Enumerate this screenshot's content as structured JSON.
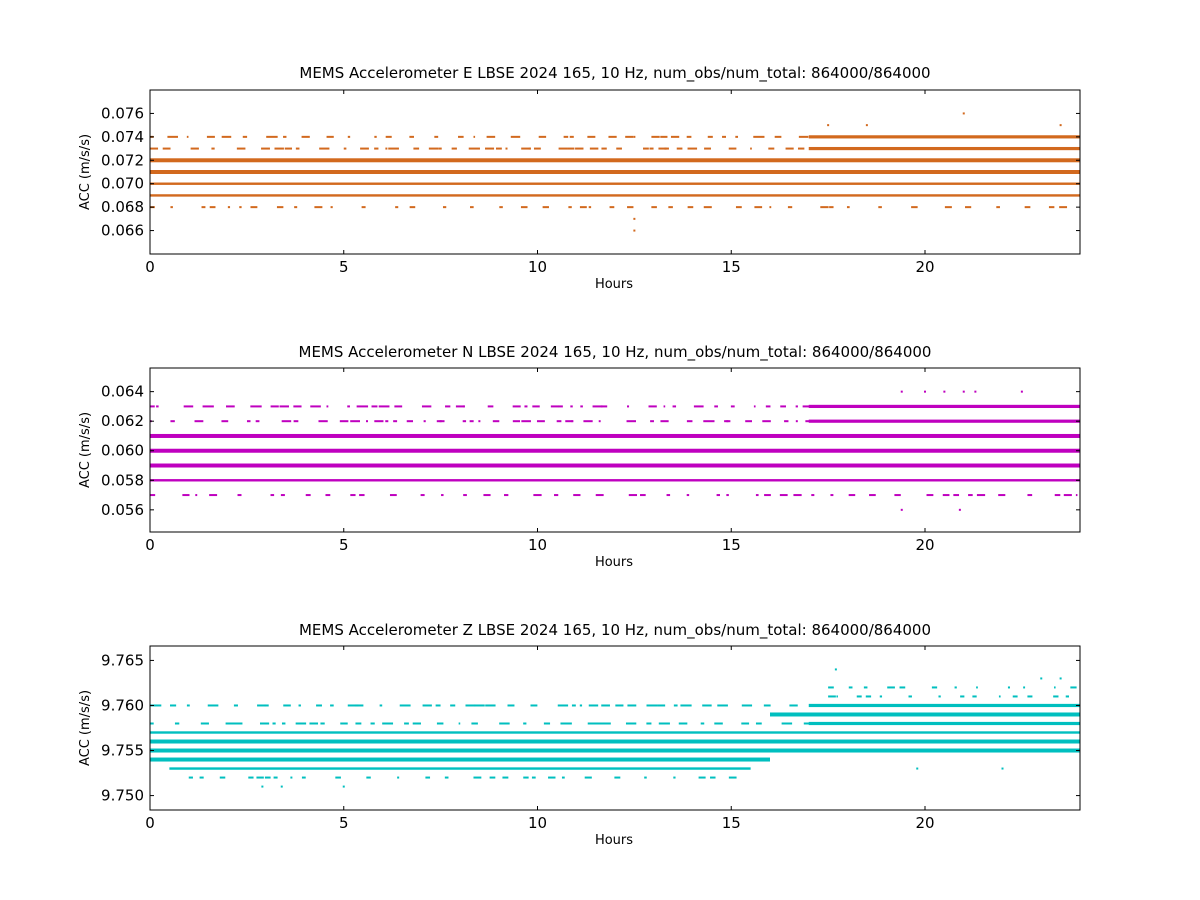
{
  "chart_data": [
    {
      "type": "scatter",
      "title": "MEMS Accelerometer E LBSE 2024 165, 10 Hz, num_obs/num_total: 864000/864000",
      "xlabel": "Hours",
      "ylabel": "ACC (m/s/s)",
      "xlim": [
        0,
        24
      ],
      "ylim": [
        0.064,
        0.078
      ],
      "xticks": [
        0,
        5,
        10,
        15,
        20
      ],
      "xtick_labels": [
        "0",
        "5",
        "10",
        "15",
        "20"
      ],
      "yticks": [
        0.066,
        0.068,
        0.07,
        0.072,
        0.074,
        0.076
      ],
      "ytick_labels": [
        "0.066",
        "0.068",
        "0.070",
        "0.072",
        "0.074",
        "0.076"
      ],
      "color": "#d2691e",
      "series": [
        {
          "y": 0.072,
          "x_start": 0,
          "x_end": 24,
          "density": "dense"
        },
        {
          "y": 0.071,
          "x_start": 0,
          "x_end": 24,
          "density": "dense"
        },
        {
          "y": 0.07,
          "x_start": 0,
          "x_end": 24,
          "density": "medium"
        },
        {
          "y": 0.069,
          "x_start": 0,
          "x_end": 24,
          "density": "medium"
        },
        {
          "y": 0.073,
          "x_start": 0,
          "x_end": 24,
          "density": "sparse-early-dense-late"
        },
        {
          "y": 0.074,
          "x_start": 0,
          "x_end": 24,
          "density": "sparse-early-dense-late"
        },
        {
          "y": 0.068,
          "x_start": 0,
          "x_end": 24,
          "density": "sparse"
        }
      ],
      "outliers": [
        [
          12.5,
          0.066
        ],
        [
          12.5,
          0.067
        ],
        [
          21.0,
          0.076
        ],
        [
          17.5,
          0.075
        ],
        [
          18.5,
          0.075
        ],
        [
          23.5,
          0.075
        ],
        [
          6.1,
          0.073
        ],
        [
          9.2,
          0.073
        ],
        [
          9.8,
          0.073
        ],
        [
          12.5,
          0.074
        ],
        [
          13.3,
          0.073
        ]
      ]
    },
    {
      "type": "scatter",
      "title": "MEMS Accelerometer N LBSE 2024 165, 10 Hz, num_obs/num_total: 864000/864000",
      "xlabel": "Hours",
      "ylabel": "ACC (m/s/s)",
      "xlim": [
        0,
        24
      ],
      "ylim": [
        0.0545,
        0.0656
      ],
      "xticks": [
        0,
        5,
        10,
        15,
        20
      ],
      "xtick_labels": [
        "0",
        "5",
        "10",
        "15",
        "20"
      ],
      "yticks": [
        0.056,
        0.058,
        0.06,
        0.062,
        0.064
      ],
      "ytick_labels": [
        "0.056",
        "0.058",
        "0.060",
        "0.062",
        "0.064"
      ],
      "color": "#bf00bf",
      "series": [
        {
          "y": 0.061,
          "x_start": 0,
          "x_end": 24,
          "density": "dense"
        },
        {
          "y": 0.06,
          "x_start": 0,
          "x_end": 24,
          "density": "dense"
        },
        {
          "y": 0.059,
          "x_start": 0,
          "x_end": 24,
          "density": "dense"
        },
        {
          "y": 0.058,
          "x_start": 0,
          "x_end": 24,
          "density": "medium"
        },
        {
          "y": 0.062,
          "x_start": 0,
          "x_end": 24,
          "density": "sparse-early-dense-late"
        },
        {
          "y": 0.063,
          "x_start": 0,
          "x_end": 24,
          "density": "sparse-early-dense-late"
        },
        {
          "y": 0.057,
          "x_start": 0,
          "x_end": 24,
          "density": "sparse"
        }
      ],
      "outliers": [
        [
          19.4,
          0.064
        ],
        [
          20.0,
          0.064
        ],
        [
          20.5,
          0.064
        ],
        [
          21.0,
          0.064
        ],
        [
          21.3,
          0.064
        ],
        [
          22.5,
          0.064
        ],
        [
          19.4,
          0.056
        ],
        [
          20.9,
          0.056
        ],
        [
          5.6,
          0.062
        ],
        [
          7.5,
          0.062
        ],
        [
          8.5,
          0.062
        ],
        [
          10.9,
          0.062
        ],
        [
          14.9,
          0.062
        ]
      ]
    },
    {
      "type": "scatter",
      "title": "MEMS Accelerometer Z LBSE 2024 165, 10 Hz, num_obs/num_total: 864000/864000",
      "xlabel": "Hours",
      "ylabel": "ACC (m/s/s)",
      "xlim": [
        0,
        24
      ],
      "ylim": [
        9.7484,
        9.7666
      ],
      "xticks": [
        0,
        5,
        10,
        15,
        20
      ],
      "xtick_labels": [
        "0",
        "5",
        "10",
        "15",
        "20"
      ],
      "yticks": [
        9.75,
        9.755,
        9.76,
        9.765
      ],
      "ytick_labels": [
        "9.750",
        "9.755",
        "9.760",
        "9.765"
      ],
      "color": "#00bfbf",
      "series": [
        {
          "y": 9.757,
          "x_start": 0,
          "x_end": 24,
          "density": "medium"
        },
        {
          "y": 9.756,
          "x_start": 0,
          "x_end": 24,
          "density": "dense"
        },
        {
          "y": 9.755,
          "x_start": 0,
          "x_end": 24,
          "density": "dense"
        },
        {
          "y": 9.754,
          "x_start": 0,
          "x_end": 16,
          "density": "dense"
        },
        {
          "y": 9.753,
          "x_start": 0.5,
          "x_end": 15.5,
          "density": "medium"
        },
        {
          "y": 9.752,
          "x_start": 1,
          "x_end": 15,
          "density": "sparse"
        },
        {
          "y": 9.758,
          "x_start": 0,
          "x_end": 24,
          "density": "sparse-early-dense-late"
        },
        {
          "y": 9.759,
          "x_start": 16,
          "x_end": 24,
          "density": "dense"
        },
        {
          "y": 9.76,
          "x_start": 0,
          "x_end": 24,
          "density": "sparse-early-dense-late"
        },
        {
          "y": 9.761,
          "x_start": 17.5,
          "x_end": 24,
          "density": "sparse"
        },
        {
          "y": 9.762,
          "x_start": 17.5,
          "x_end": 24,
          "density": "sparse"
        }
      ],
      "outliers": [
        [
          17.7,
          9.764
        ],
        [
          23.0,
          9.763
        ],
        [
          23.5,
          9.763
        ],
        [
          2.9,
          9.751
        ],
        [
          3.4,
          9.751
        ],
        [
          5.0,
          9.751
        ],
        [
          19.8,
          9.753
        ],
        [
          22.0,
          9.753
        ]
      ]
    }
  ]
}
